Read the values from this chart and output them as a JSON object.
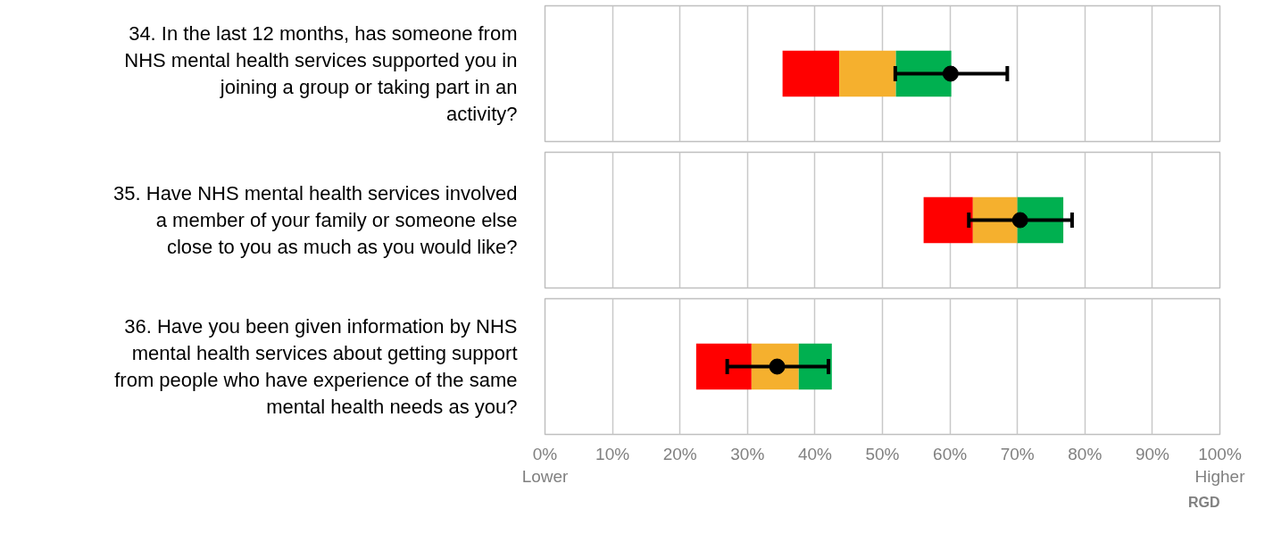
{
  "chart_data": [
    {
      "type": "bar",
      "orientation": "horizontal",
      "categories": [
        "34. In the last 12 months, has someone from NHS mental health services supported you in joining a group or taking part in an activity?"
      ],
      "series": [
        {
          "color": "#ff0000",
          "base": [
            35.2
          ],
          "values": [
            8.4
          ]
        },
        {
          "color": "#f5b02e",
          "base": [
            43.6
          ],
          "values": [
            8.4
          ]
        },
        {
          "color": "#00b050",
          "base": [
            52.0
          ],
          "values": [
            8.2
          ]
        },
        {
          "type": "scatter",
          "color": "#000000",
          "values": [
            60.1
          ],
          "errors": [
            [
              51.9,
              68.5
            ]
          ]
        }
      ],
      "marker": "circle",
      "xlim": [
        0,
        100
      ],
      "xticks": [
        0,
        10,
        20,
        30,
        40,
        50,
        60,
        70,
        80,
        90,
        100
      ],
      "grid": "x",
      "tick_labels": "y"
    },
    {
      "type": "bar",
      "orientation": "horizontal",
      "categories": [
        "35. Have NHS mental health services involved a member of your family or someone else close to you as much as you would like?"
      ],
      "series": [
        {
          "color": "#ff0000",
          "base": [
            56.1
          ],
          "values": [
            7.3
          ]
        },
        {
          "color": "#f5b02e",
          "base": [
            63.4
          ],
          "values": [
            6.6
          ]
        },
        {
          "color": "#00b050",
          "base": [
            70.0
          ],
          "values": [
            6.8
          ]
        },
        {
          "type": "scatter",
          "color": "#000000",
          "values": [
            70.4
          ],
          "errors": [
            [
              62.8,
              78.1
            ]
          ]
        }
      ],
      "marker": "circle",
      "xlim": [
        0,
        100
      ],
      "xticks": [
        0,
        10,
        20,
        30,
        40,
        50,
        60,
        70,
        80,
        90,
        100
      ],
      "grid": "x",
      "tick_labels": "y"
    },
    {
      "type": "bar",
      "orientation": "horizontal",
      "categories": [
        "36. Have you been given information by NHS mental health services about getting support from people who have experience of the same mental health needs as you?"
      ],
      "series": [
        {
          "color": "#ff0000",
          "base": [
            22.4
          ],
          "values": [
            8.2
          ]
        },
        {
          "color": "#f5b02e",
          "base": [
            30.6
          ],
          "values": [
            7.0
          ]
        },
        {
          "color": "#00b050",
          "base": [
            37.6
          ],
          "values": [
            4.9
          ]
        },
        {
          "type": "scatter",
          "color": "#000000",
          "values": [
            34.4
          ],
          "errors": [
            [
              27.0,
              42.0
            ]
          ]
        }
      ],
      "marker": "circle",
      "xlim": [
        0,
        100
      ],
      "xticks": [
        {
          "value": 0,
          "label": "0%\nLower"
        },
        {
          "value": 10,
          "label": "10%"
        },
        {
          "value": 20,
          "label": "20%"
        },
        {
          "value": 30,
          "label": "30%"
        },
        {
          "value": 40,
          "label": "40%"
        },
        {
          "value": 50,
          "label": "50%"
        },
        {
          "value": 60,
          "label": "60%"
        },
        {
          "value": 70,
          "label": "70%"
        },
        {
          "value": 80,
          "label": "80%"
        },
        {
          "value": 90,
          "label": "90%"
        },
        {
          "value": 100,
          "label": "100%\nHigher"
        }
      ],
      "grid": "x",
      "annotations": [
        "RGD"
      ]
    }
  ]
}
